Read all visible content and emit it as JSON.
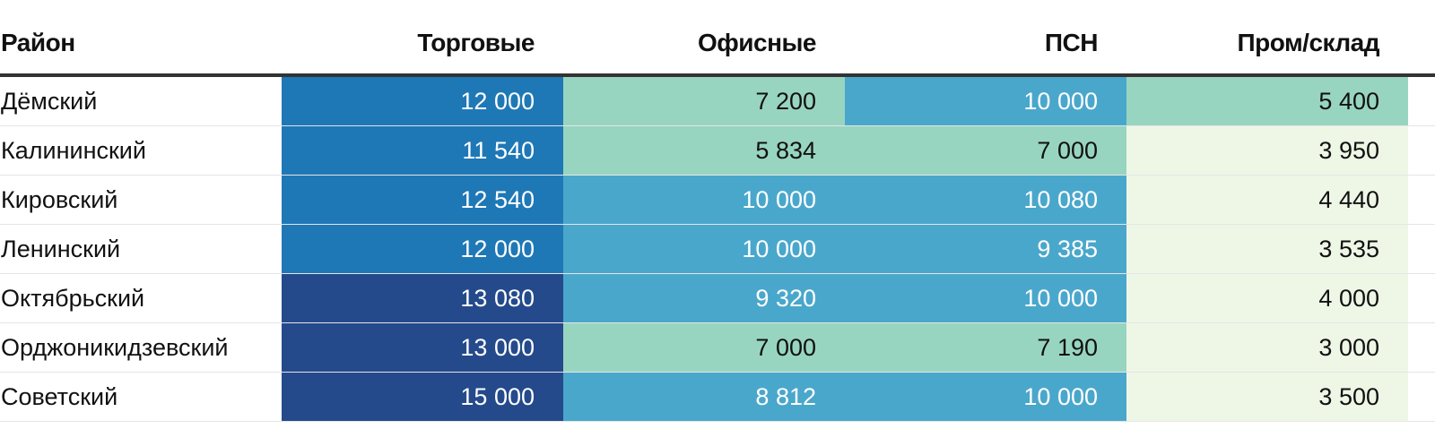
{
  "chart_data": {
    "type": "table",
    "columns": [
      "Район",
      "Торговые",
      "Офисные",
      "ПСН",
      "Пром/склад"
    ],
    "rows": [
      {
        "name": "Дёмский",
        "values": [
          "12 000",
          "7 200",
          "10 000",
          "5 400"
        ],
        "colors": [
          "#1f78b6",
          "#98d5c0",
          "#4aa7cc",
          "#98d5c0"
        ]
      },
      {
        "name": "Калининский",
        "values": [
          "11 540",
          "5 834",
          "7 000",
          "3 950"
        ],
        "colors": [
          "#1f78b6",
          "#98d5c0",
          "#98d5c0",
          "#eef7e6"
        ]
      },
      {
        "name": "Кировский",
        "values": [
          "12 540",
          "10 000",
          "10 080",
          "4 440"
        ],
        "colors": [
          "#1f78b6",
          "#4aa7cc",
          "#4aa7cc",
          "#eef7e6"
        ]
      },
      {
        "name": "Ленинский",
        "values": [
          "12 000",
          "10 000",
          "9 385",
          "3 535"
        ],
        "colors": [
          "#1f78b6",
          "#4aa7cc",
          "#4aa7cc",
          "#eef7e6"
        ]
      },
      {
        "name": "Октябрьский",
        "values": [
          "13 080",
          "9 320",
          "10 000",
          "4 000"
        ],
        "colors": [
          "#244a8b",
          "#4aa7cc",
          "#4aa7cc",
          "#eef7e6"
        ]
      },
      {
        "name": "Орджоникидзевский",
        "values": [
          "13 000",
          "7 000",
          "7 190",
          "3 000"
        ],
        "colors": [
          "#244a8b",
          "#98d5c0",
          "#98d5c0",
          "#eef7e6"
        ]
      },
      {
        "name": "Советский",
        "values": [
          "15 000",
          "8 812",
          "10 000",
          "3 500"
        ],
        "colors": [
          "#244a8b",
          "#4aa7cc",
          "#4aa7cc",
          "#eef7e6"
        ]
      }
    ],
    "light_text_colors": [
      "#1f78b6",
      "#244a8b",
      "#4aa7cc"
    ]
  }
}
